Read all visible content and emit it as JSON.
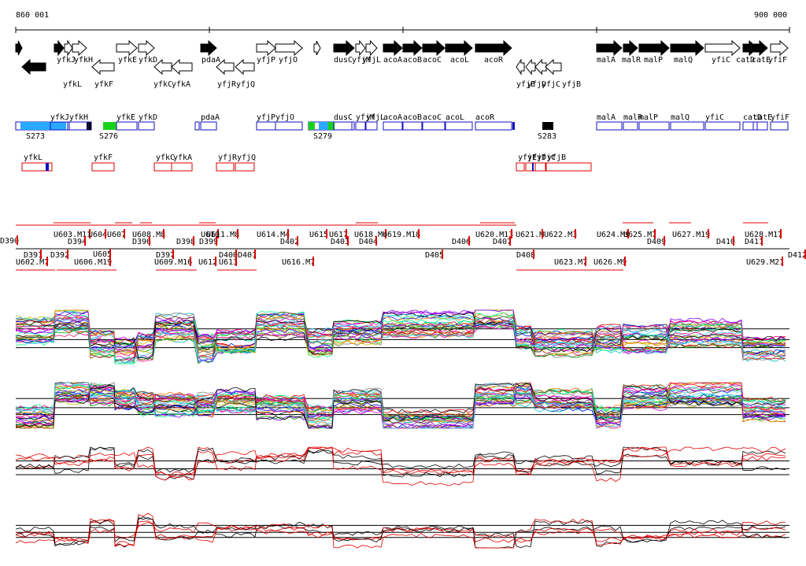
{
  "ruler": {
    "start": "860 001",
    "end": "900 000"
  },
  "genes": [
    {
      "name": "",
      "dir": "r",
      "fill": "black",
      "row": 0
    },
    {
      "name": "yfkL",
      "dir": "l",
      "fill": "black",
      "row": 1
    },
    {
      "name": "yfkJ",
      "dir": "r",
      "fill": "black",
      "row": 0
    },
    {
      "name": "yfkH",
      "dir": "r",
      "fill": "white",
      "row": 0
    },
    {
      "name": "",
      "dir": "r",
      "fill": "white",
      "row": 0
    },
    {
      "name": "yfkF",
      "dir": "l",
      "fill": "white",
      "row": 1
    },
    {
      "name": "yfkE",
      "dir": "r",
      "fill": "white",
      "row": 0
    },
    {
      "name": "yfkD",
      "dir": "r",
      "fill": "white",
      "row": 0
    },
    {
      "name": "yfkC",
      "dir": "l",
      "fill": "white",
      "row": 1
    },
    {
      "name": "yfkA",
      "dir": "l",
      "fill": "white",
      "row": 1
    },
    {
      "name": "pdaA",
      "dir": "r",
      "fill": "black",
      "row": 0
    },
    {
      "name": "yfjR",
      "dir": "l",
      "fill": "white",
      "row": 1
    },
    {
      "name": "yfjQ",
      "dir": "l",
      "fill": "white",
      "row": 1
    },
    {
      "name": "yfjP",
      "dir": "r",
      "fill": "white",
      "row": 0
    },
    {
      "name": "yfjO",
      "dir": "r",
      "fill": "white",
      "row": 0
    },
    {
      "name": "",
      "dir": "r",
      "fill": "white",
      "row": 0
    },
    {
      "name": "dusC",
      "dir": "r",
      "fill": "black",
      "row": 0
    },
    {
      "name": "yfjM",
      "dir": "r",
      "fill": "white",
      "row": 0
    },
    {
      "name": "yfjL",
      "dir": "r",
      "fill": "white",
      "row": 0
    },
    {
      "name": "acoA",
      "dir": "r",
      "fill": "black",
      "row": 0
    },
    {
      "name": "acoB",
      "dir": "r",
      "fill": "black",
      "row": 0
    },
    {
      "name": "acoC",
      "dir": "r",
      "fill": "black",
      "row": 0
    },
    {
      "name": "acoL",
      "dir": "r",
      "fill": "black",
      "row": 0
    },
    {
      "name": "acoR",
      "dir": "r",
      "fill": "black",
      "row": 0
    },
    {
      "name": "yfjE",
      "dir": "l",
      "fill": "white",
      "row": 1
    },
    {
      "name": "yfjD",
      "dir": "l",
      "fill": "white",
      "row": 1
    },
    {
      "name": "yfjC",
      "dir": "l",
      "fill": "white",
      "row": 1
    },
    {
      "name": "yfjB",
      "dir": "l",
      "fill": "white",
      "row": 1
    },
    {
      "name": "malA",
      "dir": "r",
      "fill": "black",
      "row": 0
    },
    {
      "name": "malR",
      "dir": "r",
      "fill": "black",
      "row": 0
    },
    {
      "name": "malP",
      "dir": "r",
      "fill": "black",
      "row": 0
    },
    {
      "name": "malQ",
      "dir": "r",
      "fill": "black",
      "row": 0
    },
    {
      "name": "yfiC",
      "dir": "r",
      "fill": "white",
      "row": 0
    },
    {
      "name": "catD",
      "dir": "r",
      "fill": "black",
      "row": 0
    },
    {
      "name": "catE",
      "dir": "r",
      "fill": "black",
      "row": 0
    },
    {
      "name": "yfiF",
      "dir": "r",
      "fill": "white",
      "row": 0
    }
  ],
  "blue_tracks": [
    {
      "name": "yfkJ"
    },
    {
      "name": "yfkH"
    },
    {
      "name": "yfkE"
    },
    {
      "name": "yfkD"
    },
    {
      "name": "pdaA"
    },
    {
      "name": "yfjP"
    },
    {
      "name": "yfjO"
    },
    {
      "name": "dusC"
    },
    {
      "name": "yfjM"
    },
    {
      "name": "yfjL"
    },
    {
      "name": "acoA"
    },
    {
      "name": "acoB"
    },
    {
      "name": "acoC"
    },
    {
      "name": "acoL"
    },
    {
      "name": "acoR"
    },
    {
      "name": "malA"
    },
    {
      "name": "malR"
    },
    {
      "name": "malP"
    },
    {
      "name": "malQ"
    },
    {
      "name": "yfiC"
    },
    {
      "name": "catD"
    },
    {
      "name": "catE"
    },
    {
      "name": "yfiF"
    }
  ],
  "sigma_labels": [
    "S273",
    "S276",
    "S279",
    "S283"
  ],
  "red_tracks": [
    {
      "name": "yfkL"
    },
    {
      "name": "yfkF"
    },
    {
      "name": "yfkC"
    },
    {
      "name": "yfkA"
    },
    {
      "name": "yfjR"
    },
    {
      "name": "yfjQ"
    },
    {
      "name": "yfjE"
    },
    {
      "name": "yfjD"
    },
    {
      "name": "yfjC"
    },
    {
      "name": "yfjB"
    }
  ],
  "segment_labels": [
    "D390",
    "D391",
    "D392",
    "U602.M7",
    "U603.M11",
    "D394",
    "U604",
    "U605",
    "U606.M19",
    "U607",
    "U608.M8",
    "D396",
    "D397",
    "U609.M16",
    "D398",
    "D399",
    "U610",
    "U611.M8",
    "U612",
    "U613",
    "D400",
    "D401",
    "U614.M4",
    "D402",
    "U615",
    "U616.M7",
    "U617",
    "U618.M4",
    "D403",
    "D404",
    "U619.M18",
    "D405",
    "D406",
    "U620.M13",
    "D407",
    "U621.M",
    "U622.M3",
    "D408",
    "U623.M7",
    "U624.M9",
    "U625.M7",
    "U626.M9",
    "D409",
    "U627.M19",
    "D410",
    "U628.M17",
    "D411",
    "U629.M21",
    "D412"
  ],
  "colors": {
    "blue": "#1010c0",
    "red": "#e00000",
    "cyan": "#2aa9ff",
    "green": "#19d119"
  }
}
